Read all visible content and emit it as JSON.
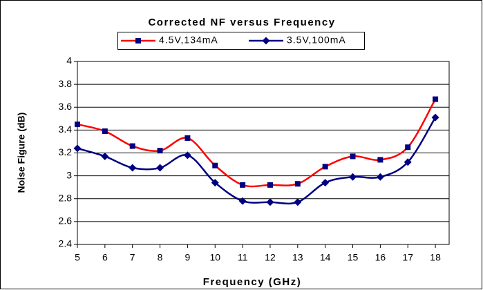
{
  "chart_data": {
    "type": "line",
    "title": "Corrected NF versus Frequency",
    "x_label": "Frequency (GHz)",
    "y_label": "Noise Figure (dB)",
    "x": [
      5,
      6,
      7,
      8,
      9,
      10,
      11,
      12,
      13,
      14,
      15,
      16,
      17,
      18
    ],
    "series": [
      {
        "name": "4.5V,134mA",
        "color": "#ff0000",
        "marker_color": "#000080",
        "marker": "square",
        "values": [
          3.45,
          3.39,
          3.26,
          3.22,
          3.33,
          3.09,
          2.92,
          2.92,
          2.93,
          3.08,
          3.17,
          3.14,
          3.25,
          3.67
        ]
      },
      {
        "name": "3.5V,100mA",
        "color": "#000080",
        "marker_color": "#000080",
        "marker": "diamond",
        "values": [
          3.24,
          3.17,
          3.07,
          3.07,
          3.18,
          2.94,
          2.78,
          2.77,
          2.77,
          2.94,
          2.99,
          2.99,
          3.12,
          3.51
        ]
      }
    ],
    "xlim": [
      5,
      18.5
    ],
    "xticks": [
      5,
      6,
      7,
      8,
      9,
      10,
      11,
      12,
      13,
      14,
      15,
      16,
      17,
      18
    ],
    "ylim": [
      2.4,
      4
    ],
    "yticks": [
      2.4,
      2.6,
      2.8,
      3,
      3.2,
      3.4,
      3.6,
      3.8,
      4
    ],
    "grid": true,
    "legend": "top"
  }
}
